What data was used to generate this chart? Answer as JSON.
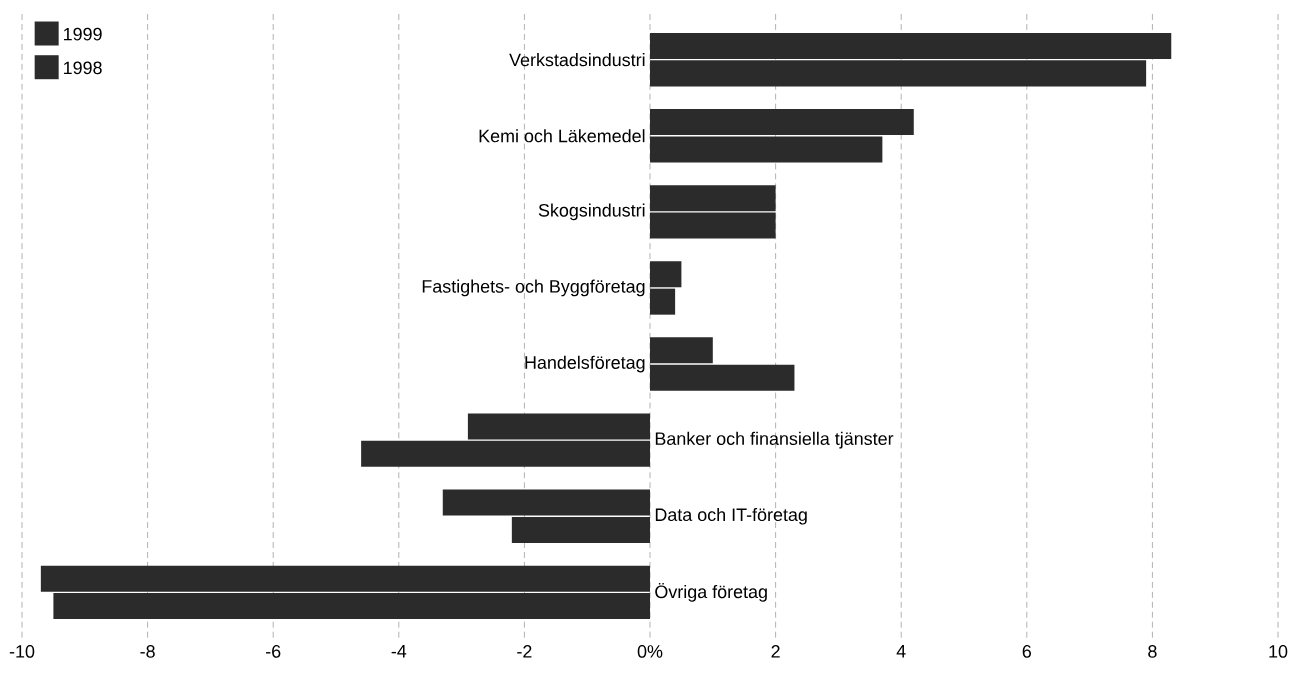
{
  "chart_data": {
    "type": "bar",
    "orientation": "horizontal",
    "categories": [
      "Verkstadsindustri",
      "Kemi och Läkemedel",
      "Skogsindustri",
      "Fastighets- och Byggföretag",
      "Handelsföretag",
      "Banker och finansiella tjänster",
      "Data och IT-företag",
      "Övriga företag"
    ],
    "series": [
      {
        "name": "1999",
        "color": "#2b2b2b",
        "values": [
          8.3,
          4.2,
          2.0,
          0.5,
          1.0,
          -2.9,
          -3.3,
          -9.7
        ]
      },
      {
        "name": "1998",
        "color": "#2b2b2b",
        "values": [
          7.9,
          3.7,
          2.0,
          0.4,
          2.3,
          -4.6,
          -2.2,
          -9.5
        ]
      }
    ],
    "xlim": [
      -10,
      10
    ],
    "xticks": [
      -10,
      -8,
      -6,
      -4,
      -2,
      {
        "value": 0,
        "label": "0%"
      },
      2,
      4,
      6,
      8,
      10
    ],
    "grid": "x",
    "legend": "top left"
  }
}
